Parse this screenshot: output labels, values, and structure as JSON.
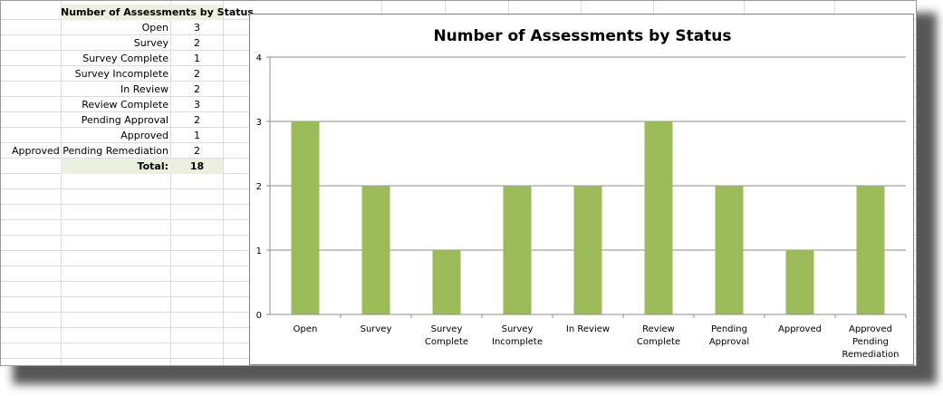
{
  "table": {
    "header": "Number of Assessments by Status",
    "rows": [
      {
        "label": "Open",
        "value": "3"
      },
      {
        "label": "Survey",
        "value": "2"
      },
      {
        "label": "Survey Complete",
        "value": "1"
      },
      {
        "label": "Survey Incomplete",
        "value": "2"
      },
      {
        "label": "In Review",
        "value": "2"
      },
      {
        "label": "Review Complete",
        "value": "3"
      },
      {
        "label": "Pending Approval",
        "value": "2"
      },
      {
        "label": "Approved",
        "value": "1"
      },
      {
        "label": "Approved Pending Remediation",
        "value": "2"
      }
    ],
    "total_label": "Total:",
    "total_value": "18",
    "header_fill": "#ebf1de"
  },
  "chart_data": {
    "type": "bar",
    "title": "Number of Assessments by Status",
    "categories": [
      "Open",
      "Survey",
      "Survey Complete",
      "Survey Incomplete",
      "In Review",
      "Review Complete",
      "Pending Approval",
      "Approved",
      "Approved Pending Remediation"
    ],
    "category_lines": [
      [
        "Open"
      ],
      [
        "Survey"
      ],
      [
        "Survey",
        "Complete"
      ],
      [
        "Survey",
        "Incomplete"
      ],
      [
        "In Review"
      ],
      [
        "Review",
        "Complete"
      ],
      [
        "Pending",
        "Approval"
      ],
      [
        "Approved"
      ],
      [
        "Approved",
        "Pending",
        "Remediation"
      ]
    ],
    "values": [
      3,
      2,
      1,
      2,
      2,
      3,
      2,
      1,
      2
    ],
    "xlabel": "",
    "ylabel": "",
    "ylim": [
      0,
      4
    ],
    "yticks": [
      0,
      1,
      2,
      3,
      4
    ],
    "grid": true,
    "legend": "none",
    "bar_color": "#9bbb59"
  }
}
